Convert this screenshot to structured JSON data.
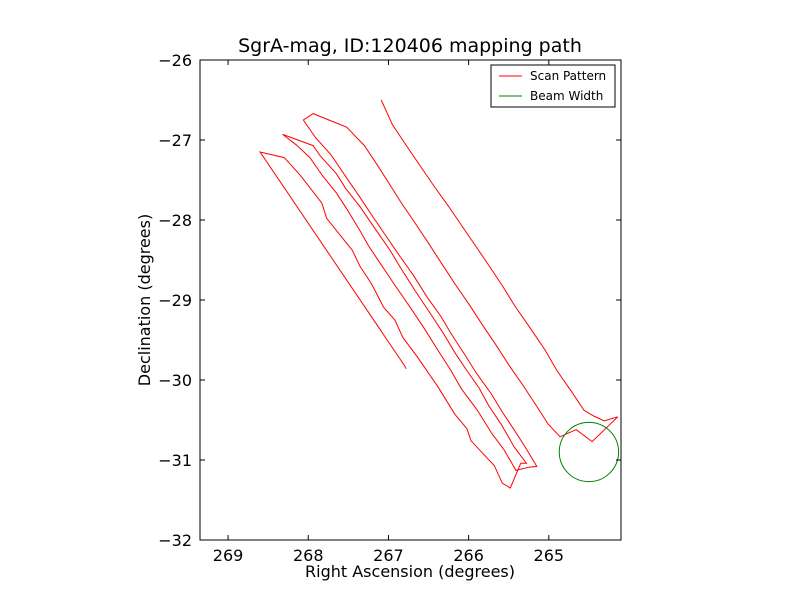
{
  "chart_data": {
    "type": "line",
    "title": "SgrA-mag, ID:120406 mapping path",
    "xlabel": "Right Ascension (degrees)",
    "ylabel": "Declination (degrees)",
    "xlim": [
      269.35,
      264.1
    ],
    "ylim": [
      -32,
      -26
    ],
    "x_ticks": [
      269,
      268,
      267,
      266,
      265
    ],
    "y_ticks": [
      -26,
      -27,
      -28,
      -29,
      -30,
      -31,
      -32
    ],
    "x_tick_labels": [
      "269",
      "268",
      "267",
      "266",
      "265"
    ],
    "y_tick_labels": [
      "−26",
      "−27",
      "−28",
      "−29",
      "−30",
      "−31",
      "−32"
    ],
    "grid": false,
    "legend_position": "top-right",
    "series": [
      {
        "name": "Scan Pattern",
        "color": "#ff0000",
        "kind": "line",
        "points": [
          [
            266.78,
            -29.86
          ],
          [
            266.8,
            -29.82
          ],
          [
            268.6,
            -27.15
          ],
          [
            268.3,
            -27.22
          ],
          [
            268.1,
            -27.44
          ],
          [
            267.83,
            -27.79
          ],
          [
            267.77,
            -27.98
          ],
          [
            267.45,
            -28.38
          ],
          [
            267.36,
            -28.57
          ],
          [
            267.21,
            -28.8
          ],
          [
            267.06,
            -29.09
          ],
          [
            266.92,
            -29.25
          ],
          [
            266.82,
            -29.47
          ],
          [
            266.64,
            -29.71
          ],
          [
            266.38,
            -30.09
          ],
          [
            266.17,
            -30.43
          ],
          [
            266.02,
            -30.61
          ],
          [
            265.97,
            -30.76
          ],
          [
            265.68,
            -31.07
          ],
          [
            265.58,
            -31.29
          ],
          [
            265.48,
            -31.35
          ],
          [
            265.35,
            -31.04
          ],
          [
            265.28,
            -31.04
          ],
          [
            265.43,
            -30.84
          ],
          [
            265.59,
            -30.56
          ],
          [
            265.75,
            -30.32
          ],
          [
            265.87,
            -30.1
          ],
          [
            266.03,
            -29.87
          ],
          [
            266.17,
            -29.66
          ],
          [
            266.32,
            -29.41
          ],
          [
            266.47,
            -29.18
          ],
          [
            266.67,
            -28.88
          ],
          [
            266.86,
            -28.58
          ],
          [
            266.98,
            -28.38
          ],
          [
            267.2,
            -28.06
          ],
          [
            267.35,
            -27.84
          ],
          [
            267.53,
            -27.61
          ],
          [
            267.65,
            -27.42
          ],
          [
            267.85,
            -27.2
          ],
          [
            267.94,
            -27.07
          ],
          [
            268.32,
            -26.93
          ],
          [
            268.15,
            -27.06
          ],
          [
            267.98,
            -27.22
          ],
          [
            267.82,
            -27.45
          ],
          [
            267.65,
            -27.66
          ],
          [
            267.52,
            -27.86
          ],
          [
            267.34,
            -28.16
          ],
          [
            267.25,
            -28.32
          ],
          [
            267.09,
            -28.56
          ],
          [
            266.93,
            -28.8
          ],
          [
            266.73,
            -29.09
          ],
          [
            266.55,
            -29.36
          ],
          [
            266.37,
            -29.65
          ],
          [
            266.24,
            -29.85
          ],
          [
            266.09,
            -30.11
          ],
          [
            265.89,
            -30.38
          ],
          [
            265.71,
            -30.67
          ],
          [
            265.56,
            -30.87
          ],
          [
            265.41,
            -31.13
          ],
          [
            265.25,
            -31.09
          ],
          [
            265.15,
            -31.08
          ],
          [
            265.3,
            -30.83
          ],
          [
            265.44,
            -30.61
          ],
          [
            265.58,
            -30.4
          ],
          [
            265.72,
            -30.17
          ],
          [
            265.9,
            -29.92
          ],
          [
            266.05,
            -29.68
          ],
          [
            266.2,
            -29.45
          ],
          [
            266.35,
            -29.2
          ],
          [
            266.52,
            -28.96
          ],
          [
            266.69,
            -28.69
          ],
          [
            266.86,
            -28.45
          ],
          [
            267.03,
            -28.2
          ],
          [
            267.18,
            -27.98
          ],
          [
            267.36,
            -27.71
          ],
          [
            267.53,
            -27.46
          ],
          [
            267.72,
            -27.18
          ],
          [
            267.91,
            -26.97
          ],
          [
            268.06,
            -26.75
          ],
          [
            267.94,
            -26.67
          ],
          [
            267.52,
            -26.84
          ],
          [
            267.3,
            -27.07
          ],
          [
            267.14,
            -27.31
          ],
          [
            267.0,
            -27.53
          ],
          [
            266.85,
            -27.77
          ],
          [
            266.68,
            -28.02
          ],
          [
            266.5,
            -28.29
          ],
          [
            266.34,
            -28.54
          ],
          [
            266.17,
            -28.8
          ],
          [
            265.99,
            -29.06
          ],
          [
            265.83,
            -29.31
          ],
          [
            265.66,
            -29.56
          ],
          [
            265.5,
            -29.81
          ],
          [
            265.32,
            -30.07
          ],
          [
            265.15,
            -30.33
          ],
          [
            265.01,
            -30.55
          ],
          [
            264.86,
            -30.71
          ],
          [
            264.66,
            -30.62
          ],
          [
            264.46,
            -30.77
          ],
          [
            264.14,
            -30.46
          ],
          [
            264.31,
            -30.51
          ],
          [
            264.44,
            -30.45
          ],
          [
            264.56,
            -30.38
          ],
          [
            264.72,
            -30.14
          ],
          [
            264.9,
            -29.88
          ],
          [
            265.05,
            -29.62
          ],
          [
            265.24,
            -29.34
          ],
          [
            265.42,
            -29.08
          ],
          [
            265.58,
            -28.82
          ],
          [
            265.74,
            -28.58
          ],
          [
            265.91,
            -28.33
          ],
          [
            266.08,
            -28.08
          ],
          [
            266.25,
            -27.83
          ],
          [
            266.43,
            -27.58
          ],
          [
            266.6,
            -27.33
          ],
          [
            266.77,
            -27.08
          ],
          [
            266.95,
            -26.81
          ],
          [
            267.09,
            -26.5
          ]
        ]
      },
      {
        "name": "Beam Width",
        "color": "#008000",
        "kind": "circle",
        "center": [
          264.5,
          -30.9
        ],
        "radius": 0.37
      }
    ]
  }
}
